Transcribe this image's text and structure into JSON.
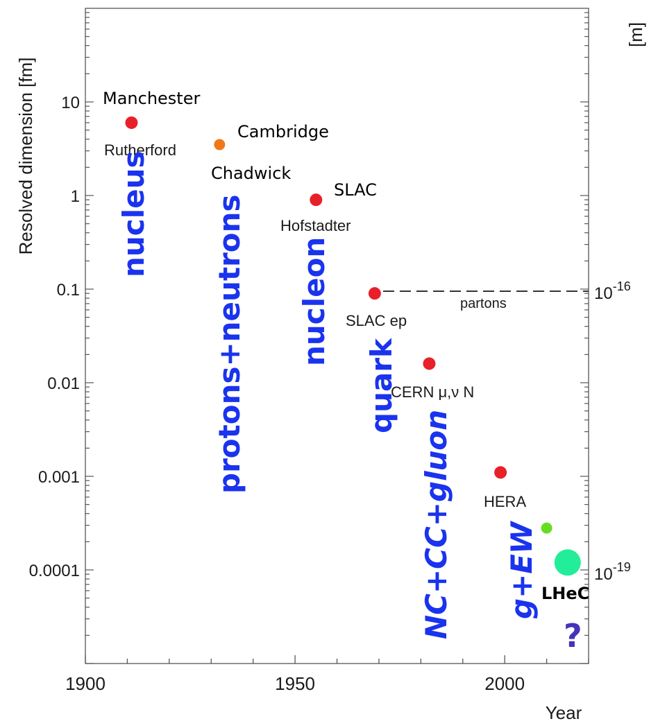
{
  "chart_data": {
    "type": "scatter",
    "title": "",
    "xlabel": "Year",
    "ylabel": "Resolved dimension [fm]",
    "y2label": "[m]",
    "xlim": [
      1900,
      2020
    ],
    "ylim": [
      1e-05,
      100
    ],
    "yscale": "log",
    "grid": false,
    "xticks": [
      "1900",
      "1950",
      "2000"
    ],
    "yticks": [
      "10",
      "1",
      "0.1",
      "0.01",
      "0.001",
      "0.0001"
    ],
    "y2ticks": [
      {
        "base": "10",
        "exp": "-16",
        "at_fm": 0.1
      },
      {
        "base": "10",
        "exp": "-19",
        "at_fm": 0.0001
      }
    ],
    "points": [
      {
        "x": 1911,
        "y": 6,
        "color": "#e8202a",
        "r": 9,
        "labels": [
          "Manchester",
          "Rutherford"
        ]
      },
      {
        "x": 1932,
        "y": 3.5,
        "color": "#f07818",
        "r": 8,
        "labels": [
          "Cambridge",
          "Chadwick"
        ]
      },
      {
        "x": 1955,
        "y": 0.9,
        "color": "#e8202a",
        "r": 9,
        "labels": [
          "SLAC",
          "Hofstadter"
        ]
      },
      {
        "x": 1969,
        "y": 0.09,
        "color": "#e8202a",
        "r": 9,
        "labels": [
          "SLAC ep"
        ]
      },
      {
        "x": 1982,
        "y": 0.016,
        "color": "#e8202a",
        "r": 9,
        "labels": [
          "CERN μ,ν N"
        ]
      },
      {
        "x": 1999,
        "y": 0.0011,
        "color": "#e8202a",
        "r": 9,
        "labels": [
          "HERA"
        ]
      },
      {
        "x": 2010,
        "y": 0.00028,
        "color": "#66dd22",
        "r": 8,
        "labels": []
      },
      {
        "x": 2015,
        "y": 0.00012,
        "color": "#22ee99",
        "r": 19,
        "labels": [
          "LHeC"
        ]
      }
    ],
    "reference_line": {
      "label": "partons",
      "y": 0.095,
      "x": [
        1971,
        2020
      ],
      "style": "dashed"
    },
    "annotations": {
      "discoveries": [
        "nucleus",
        "protons+neutrons",
        "nucleon",
        "quark",
        "NC+CC+gluon",
        "g+EW"
      ],
      "question_mark": "?"
    },
    "colors": {
      "annotation_blue": "#1a33ee",
      "question_mark": "#4433bb"
    }
  }
}
